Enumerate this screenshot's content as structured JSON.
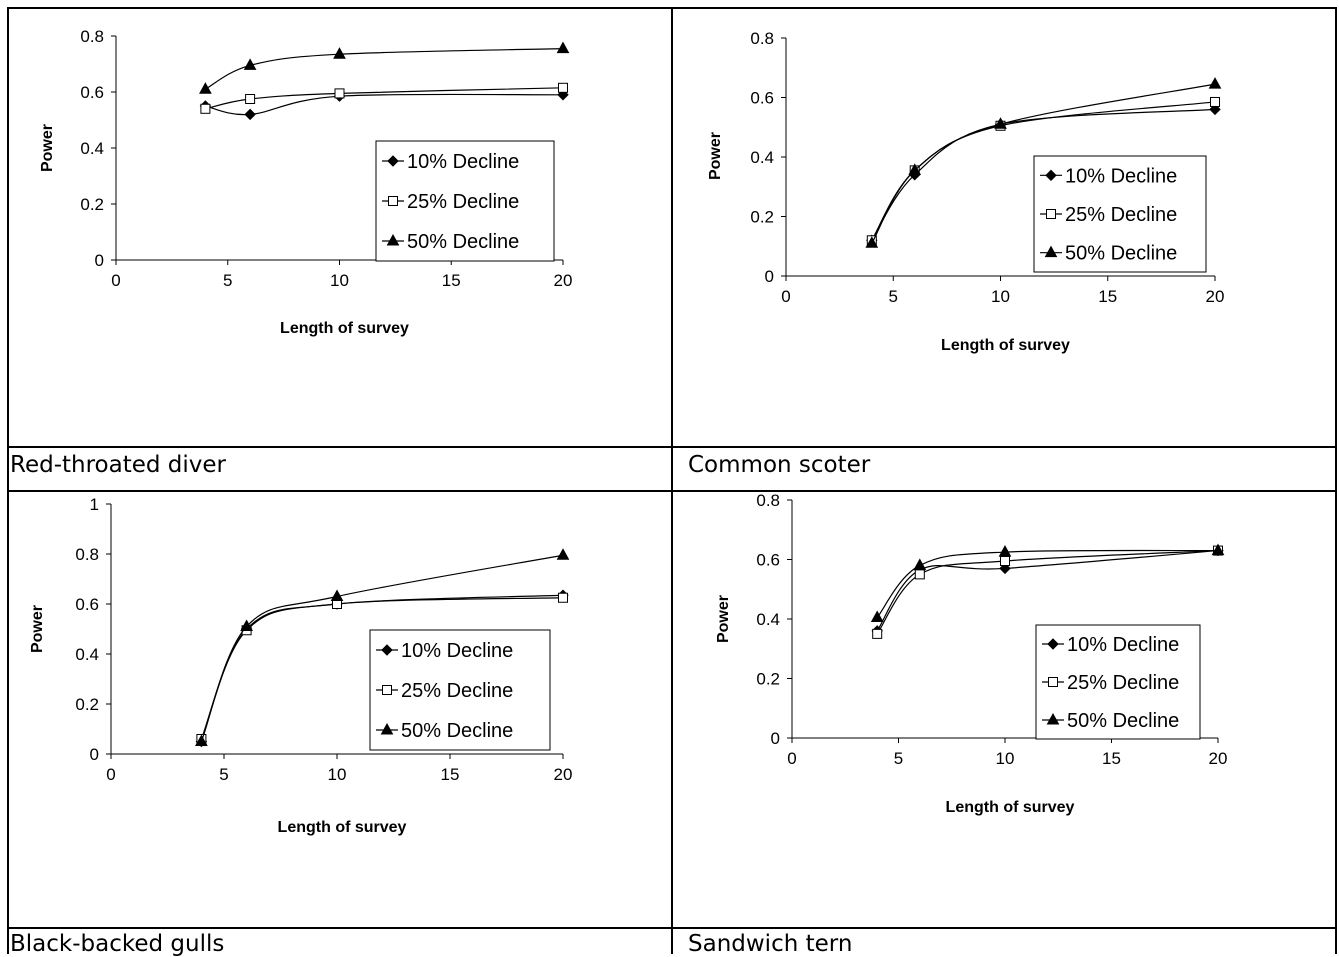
{
  "panels": [
    {
      "caption": "Red-throated diver",
      "chart_data": {
        "type": "line",
        "xlabel": "Length of survey",
        "ylabel": "Power",
        "xlim": [
          0,
          20
        ],
        "ylim": [
          0,
          0.8
        ],
        "xticks": [
          "0",
          "5",
          "10",
          "15",
          "20"
        ],
        "yticks": [
          "0",
          "0.2",
          "0.4",
          "0.6",
          "0.8"
        ],
        "x": [
          4,
          6,
          10,
          20
        ],
        "legend_position": "right",
        "series": [
          {
            "name": "10% Decline",
            "marker": "diamond",
            "values": [
              0.55,
              0.52,
              0.585,
              0.59
            ]
          },
          {
            "name": "25% Decline",
            "marker": "square-open",
            "values": [
              0.54,
              0.575,
              0.595,
              0.615
            ]
          },
          {
            "name": "50% Decline",
            "marker": "triangle",
            "values": [
              0.61,
              0.695,
              0.735,
              0.755
            ]
          }
        ]
      }
    },
    {
      "caption": "Common scoter",
      "chart_data": {
        "type": "line",
        "xlabel": "Length of survey",
        "ylabel": "Power",
        "xlim": [
          0,
          20
        ],
        "ylim": [
          0,
          0.8
        ],
        "xticks": [
          "0",
          "5",
          "10",
          "15",
          "20"
        ],
        "yticks": [
          "0",
          "0.2",
          "0.4",
          "0.6",
          "0.8"
        ],
        "x": [
          4,
          6,
          10,
          20
        ],
        "legend_position": "right",
        "series": [
          {
            "name": "10% Decline",
            "marker": "diamond",
            "values": [
              0.12,
              0.34,
              0.51,
              0.56
            ]
          },
          {
            "name": "25% Decline",
            "marker": "square-open",
            "values": [
              0.12,
              0.355,
              0.505,
              0.585
            ]
          },
          {
            "name": "50% Decline",
            "marker": "triangle",
            "values": [
              0.11,
              0.355,
              0.51,
              0.645
            ]
          }
        ]
      }
    },
    {
      "caption": "Black-backed gulls",
      "chart_data": {
        "type": "line",
        "xlabel": "Length of survey",
        "ylabel": "Power",
        "xlim": [
          0,
          20
        ],
        "ylim": [
          0,
          1
        ],
        "xticks": [
          "0",
          "5",
          "10",
          "15",
          "20"
        ],
        "yticks": [
          "0",
          "0.2",
          "0.4",
          "0.6",
          "0.8",
          "1"
        ],
        "x": [
          4,
          6,
          10,
          20
        ],
        "legend_position": "right",
        "series": [
          {
            "name": "10% Decline",
            "marker": "diamond",
            "values": [
              0.05,
              0.5,
              0.6,
              0.635
            ]
          },
          {
            "name": "25% Decline",
            "marker": "square-open",
            "values": [
              0.06,
              0.495,
              0.6,
              0.625
            ]
          },
          {
            "name": "50% Decline",
            "marker": "triangle",
            "values": [
              0.05,
              0.51,
              0.63,
              0.795
            ]
          }
        ]
      }
    },
    {
      "caption": "Sandwich tern",
      "chart_data": {
        "type": "line",
        "xlabel": "Length of survey",
        "ylabel": "Power",
        "xlim": [
          0,
          20
        ],
        "ylim": [
          0,
          0.8
        ],
        "xticks": [
          "0",
          "5",
          "10",
          "15",
          "20"
        ],
        "yticks": [
          "0",
          "0.2",
          "0.4",
          "0.6",
          "0.8"
        ],
        "x": [
          4,
          6,
          10,
          20
        ],
        "legend_position": "right",
        "series": [
          {
            "name": "10% Decline",
            "marker": "diamond",
            "values": [
              0.36,
              0.565,
              0.57,
              0.63
            ]
          },
          {
            "name": "25% Decline",
            "marker": "square-open",
            "values": [
              0.35,
              0.55,
              0.595,
              0.63
            ]
          },
          {
            "name": "50% Decline",
            "marker": "triangle",
            "values": [
              0.405,
              0.58,
              0.625,
              0.63
            ]
          }
        ]
      }
    }
  ]
}
